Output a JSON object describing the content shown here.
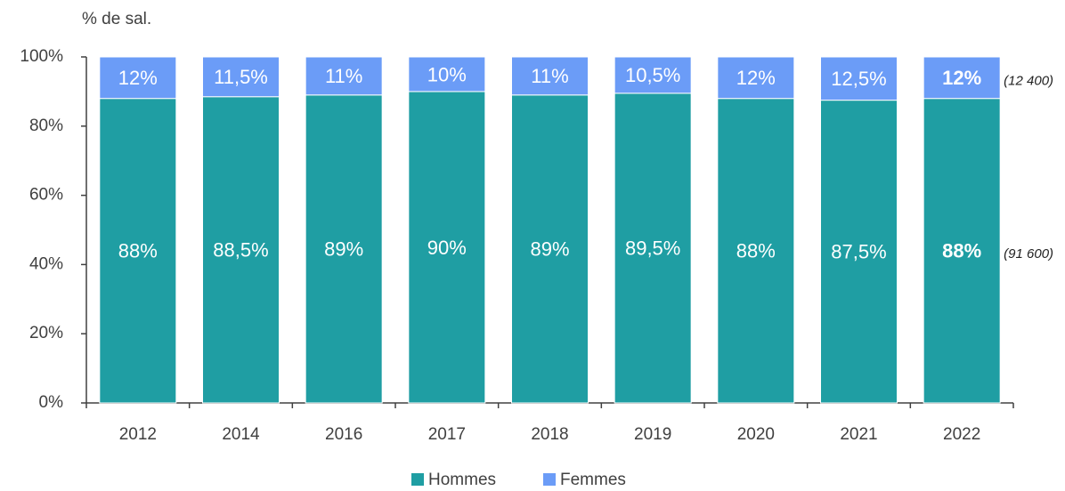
{
  "chart_data": {
    "type": "stacked_bar",
    "y_label": "% de sal.",
    "categories": [
      "2012",
      "2014",
      "2016",
      "2017",
      "2018",
      "2019",
      "2020",
      "2021",
      "2022"
    ],
    "series": [
      {
        "name": "Hommes",
        "color": "#1f9ea3",
        "values": [
          88,
          88.5,
          89,
          90,
          89,
          89.5,
          88,
          87.5,
          88
        ],
        "value_labels": [
          "88%",
          "88,5%",
          "89%",
          "90%",
          "89%",
          "89,5%",
          "88%",
          "87,5%",
          "88%"
        ]
      },
      {
        "name": "Femmes",
        "color": "#6b9cf7",
        "values": [
          12,
          11.5,
          11,
          10,
          11,
          10.5,
          12,
          12.5,
          12
        ],
        "value_labels": [
          "12%",
          "11,5%",
          "11%",
          "10%",
          "11%",
          "10,5%",
          "12%",
          "12,5%",
          "12%"
        ]
      }
    ],
    "annotations": [
      "(91 600)",
      "(12 400)"
    ],
    "ylim": [
      0,
      100
    ],
    "yticks": [
      {
        "value": 0,
        "label": "0%"
      },
      {
        "value": 20,
        "label": "20%"
      },
      {
        "value": 40,
        "label": "40%"
      },
      {
        "value": 60,
        "label": "60%"
      },
      {
        "value": 80,
        "label": "80%"
      },
      {
        "value": 100,
        "label": "100%"
      }
    ],
    "grid": false,
    "legend": "bottom"
  }
}
